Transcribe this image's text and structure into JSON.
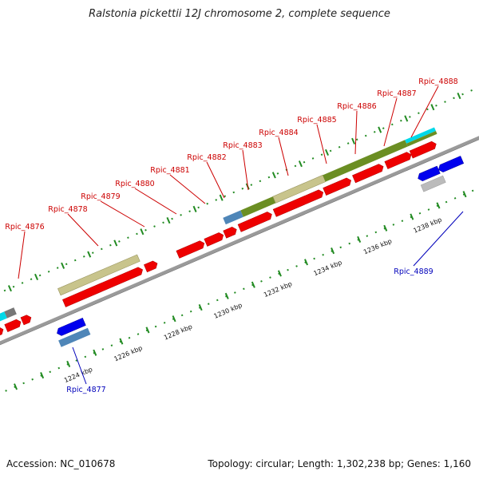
{
  "title": "Ralstonia pickettii 12J chromosome 2, complete sequence",
  "footer": {
    "accession": "Accession: NC_010678",
    "summary": "Topology: circular; Length: 1,302,238 bp; Genes: 1,160"
  },
  "colors": {
    "backbone": "#8c8c8c",
    "forward_gene": "#ee0000",
    "reverse_gene": "#0000ee",
    "label_forward": "#cc0000",
    "label_reverse": "#0000bb",
    "cog_khaki": "#c8c48c",
    "cog_olive": "#6b8e23",
    "cog_cyan": "#00d8e8",
    "cog_steelblue": "#4f86b8",
    "cog_gray": "#bbbbbb",
    "tick_green": "#228b22"
  },
  "axis": {
    "unit": "kbp",
    "ticks": [
      "1224 kbp",
      "1226 kbp",
      "1228 kbp",
      "1230 kbp",
      "1232 kbp",
      "1234 kbp",
      "1236 kbp",
      "1238 kbp"
    ]
  },
  "gene_labels": [
    {
      "name": "Rpic_4876",
      "strand": "forward"
    },
    {
      "name": "Rpic_4877",
      "strand": "reverse"
    },
    {
      "name": "Rpic_4878",
      "strand": "forward"
    },
    {
      "name": "Rpic_4879",
      "strand": "forward"
    },
    {
      "name": "Rpic_4880",
      "strand": "forward"
    },
    {
      "name": "Rpic_4881",
      "strand": "forward"
    },
    {
      "name": "Rpic_4882",
      "strand": "forward"
    },
    {
      "name": "Rpic_4883",
      "strand": "forward"
    },
    {
      "name": "Rpic_4884",
      "strand": "forward"
    },
    {
      "name": "Rpic_4885",
      "strand": "forward"
    },
    {
      "name": "Rpic_4886",
      "strand": "forward"
    },
    {
      "name": "Rpic_4887",
      "strand": "forward"
    },
    {
      "name": "Rpic_4888",
      "strand": "forward"
    },
    {
      "name": "Rpic_4889",
      "strand": "reverse"
    }
  ]
}
